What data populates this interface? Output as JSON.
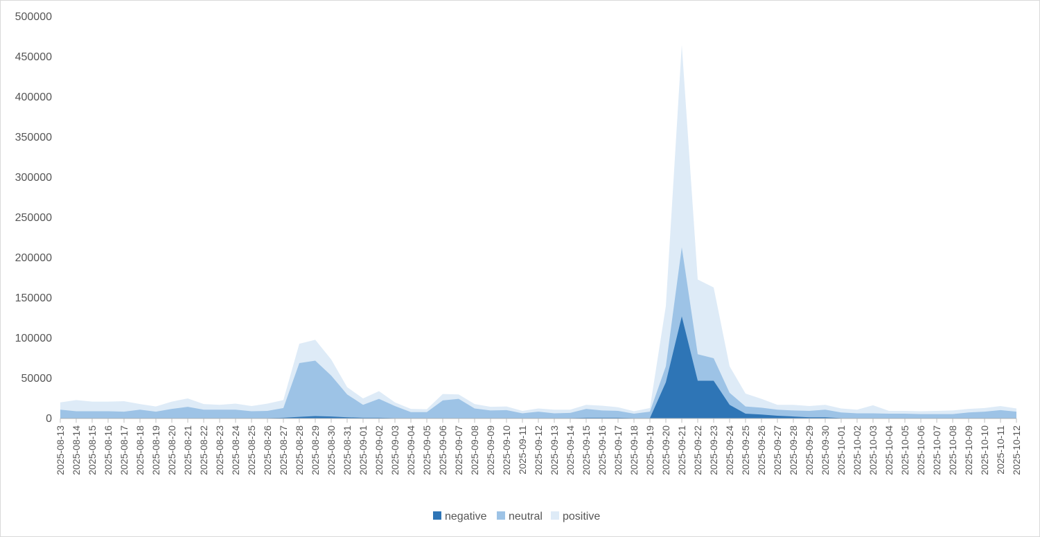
{
  "chart_data": {
    "type": "area",
    "stacked": true,
    "title": "",
    "xlabel": "",
    "ylabel": "",
    "ylim": [
      0,
      500000
    ],
    "yticks": [
      0,
      50000,
      100000,
      150000,
      200000,
      250000,
      300000,
      350000,
      400000,
      450000,
      500000
    ],
    "grid": false,
    "legend_position": "bottom-center",
    "x": [
      "2025-08-13",
      "2025-08-14",
      "2025-08-15",
      "2025-08-16",
      "2025-08-17",
      "2025-08-18",
      "2025-08-19",
      "2025-08-20",
      "2025-08-21",
      "2025-08-22",
      "2025-08-23",
      "2025-08-24",
      "2025-08-25",
      "2025-08-26",
      "2025-08-27",
      "2025-08-28",
      "2025-08-29",
      "2025-08-30",
      "2025-08-31",
      "2025-09-01",
      "2025-09-02",
      "2025-09-03",
      "2025-09-04",
      "2025-09-05",
      "2025-09-06",
      "2025-09-07",
      "2025-09-08",
      "2025-09-09",
      "2025-09-10",
      "2025-09-11",
      "2025-09-12",
      "2025-09-13",
      "2025-09-14",
      "2025-09-15",
      "2025-09-16",
      "2025-09-17",
      "2025-09-18",
      "2025-09-19",
      "2025-09-20",
      "2025-09-21",
      "2025-09-22",
      "2025-09-23",
      "2025-09-24",
      "2025-09-25",
      "2025-09-26",
      "2025-09-27",
      "2025-09-28",
      "2025-09-29",
      "2025-09-30",
      "2025-10-01",
      "2025-10-02",
      "2025-10-03",
      "2025-10-04",
      "2025-10-05",
      "2025-10-06",
      "2025-10-07",
      "2025-10-08",
      "2025-10-09",
      "2025-10-10",
      "2025-10-11",
      "2025-10-12"
    ],
    "series": [
      {
        "name": "negative",
        "color": "#2e75b6",
        "values": [
          500,
          500,
          500,
          500,
          500,
          500,
          500,
          500,
          500,
          500,
          500,
          500,
          500,
          500,
          1000,
          2000,
          3000,
          2500,
          1500,
          1000,
          1000,
          500,
          500,
          500,
          500,
          500,
          500,
          500,
          500,
          500,
          500,
          500,
          500,
          1000,
          1000,
          1000,
          500,
          500,
          45000,
          127000,
          47000,
          47000,
          17000,
          6000,
          5000,
          3500,
          2500,
          1500,
          1500,
          500,
          500,
          500,
          500,
          500,
          500,
          500,
          500,
          500,
          500,
          500,
          500
        ]
      },
      {
        "name": "neutral",
        "color": "#9dc3e6",
        "values": [
          10500,
          8500,
          8500,
          8500,
          8000,
          10500,
          8000,
          11500,
          14000,
          10500,
          10500,
          10500,
          8500,
          9000,
          12000,
          67000,
          69000,
          51000,
          28500,
          16000,
          23500,
          15000,
          7500,
          7500,
          22000,
          24000,
          12000,
          9500,
          10000,
          6000,
          8000,
          6000,
          6500,
          11000,
          9000,
          8500,
          5500,
          8000,
          20000,
          86000,
          33000,
          28000,
          15000,
          9000,
          8500,
          7500,
          7500,
          8000,
          9500,
          7000,
          6000,
          6000,
          5500,
          5500,
          5000,
          5000,
          5000,
          7000,
          8000,
          10000,
          8000
        ]
      },
      {
        "name": "positive",
        "color": "#deebf7",
        "values": [
          9000,
          14000,
          12000,
          12000,
          13000,
          7000,
          6500,
          9000,
          10500,
          7000,
          6000,
          7500,
          6500,
          9000,
          10000,
          24000,
          26000,
          20000,
          9000,
          8000,
          9500,
          4500,
          4000,
          3500,
          8000,
          5500,
          5500,
          4500,
          4500,
          3000,
          4000,
          4500,
          4000,
          5000,
          6000,
          4500,
          3000,
          4500,
          75000,
          252000,
          93000,
          88000,
          33000,
          16000,
          11000,
          6000,
          7000,
          6000,
          6000,
          5000,
          4500,
          10000,
          3500,
          3500,
          3500,
          4000,
          4500,
          4500,
          4500,
          5000,
          4000
        ]
      }
    ]
  }
}
